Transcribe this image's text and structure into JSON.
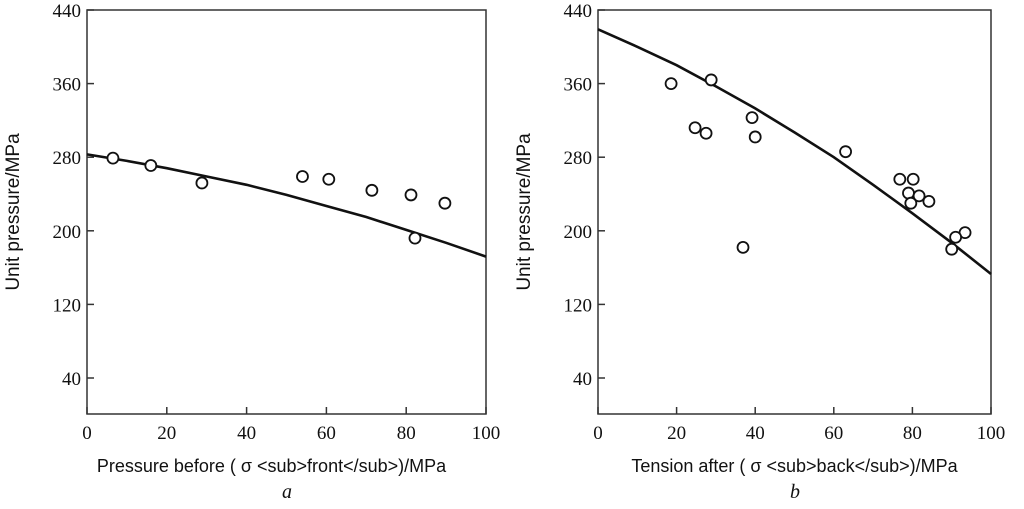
{
  "chart_data": [
    {
      "type": "scatter",
      "caption": "a",
      "xlabel": "Pressure before ( σ <sub>front</sub>)/MPa",
      "ylabel": "Unit pressure/MPa",
      "xlim": [
        0,
        100
      ],
      "ylim": [
        0,
        440
      ],
      "xticks": [
        0,
        20,
        40,
        60,
        80,
        100
      ],
      "yticks": [
        40,
        120,
        200,
        280,
        360,
        440
      ],
      "grid": false,
      "points": [
        [
          6.5,
          279
        ],
        [
          16,
          271
        ],
        [
          28.8,
          252
        ],
        [
          54,
          259
        ],
        [
          60.6,
          256
        ],
        [
          71.4,
          244
        ],
        [
          81.2,
          239
        ],
        [
          89.7,
          230
        ],
        [
          82.2,
          192
        ]
      ],
      "fit_curve": {
        "x": [
          0,
          10,
          20,
          30,
          40,
          50,
          60,
          70,
          80,
          90,
          100
        ],
        "y": [
          283,
          276,
          268,
          259,
          250,
          239,
          227,
          215,
          201,
          187,
          172
        ]
      }
    },
    {
      "type": "scatter",
      "caption": "b",
      "xlabel": "Tension after ( σ <sub>back</sub>)/MPa",
      "ylabel": "Unit pressure/MPa",
      "xlim": [
        0,
        100
      ],
      "ylim": [
        0,
        440
      ],
      "xticks": [
        0,
        20,
        40,
        60,
        80,
        100
      ],
      "yticks": [
        40,
        120,
        200,
        280,
        360,
        440
      ],
      "grid": false,
      "points": [
        [
          18.6,
          360
        ],
        [
          28.8,
          364
        ],
        [
          24.7,
          312
        ],
        [
          27.5,
          306
        ],
        [
          39.2,
          323
        ],
        [
          40,
          302
        ],
        [
          36.9,
          182
        ],
        [
          63,
          286
        ],
        [
          76.8,
          256
        ],
        [
          80.2,
          256
        ],
        [
          79,
          241
        ],
        [
          81.7,
          238
        ],
        [
          79.6,
          230
        ],
        [
          84.2,
          232
        ],
        [
          93.4,
          198
        ],
        [
          91,
          193
        ],
        [
          90,
          180
        ]
      ],
      "fit_curve": {
        "x": [
          0,
          10,
          20,
          30,
          40,
          50,
          60,
          70,
          80,
          90,
          100
        ],
        "y": [
          419,
          400,
          380,
          357,
          333,
          307,
          280,
          250,
          219,
          187,
          153
        ]
      }
    }
  ]
}
